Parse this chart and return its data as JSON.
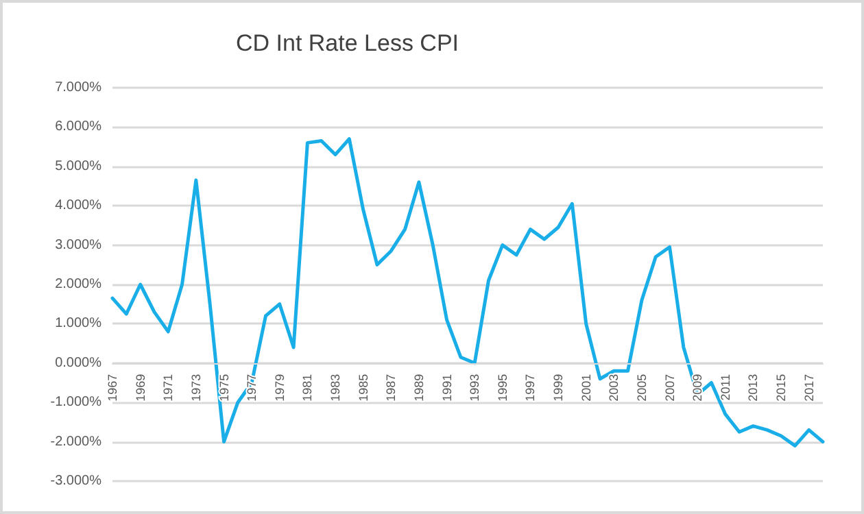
{
  "chart_data": {
    "type": "line",
    "title": "CD Int Rate Less CPI",
    "categories": [
      "1967",
      null,
      "1969",
      null,
      "1971",
      null,
      "1973",
      null,
      "1975",
      null,
      "1977",
      null,
      "1979",
      null,
      "1981",
      null,
      "1983",
      null,
      "1985",
      null,
      "1987",
      null,
      "1989",
      null,
      "1991",
      null,
      "1993",
      null,
      "1995",
      null,
      "1997",
      null,
      "1999",
      null,
      "2001",
      null,
      "2003",
      null,
      "2005",
      null,
      "2007",
      null,
      "2009",
      null,
      "2011",
      null,
      "2013",
      null,
      "2015",
      null,
      "2017",
      null
    ],
    "series": [
      {
        "color": "#1aaee8",
        "values": [
          1.65,
          1.25,
          2.0,
          1.3,
          0.8,
          2.0,
          4.65,
          1.5,
          -2.0,
          -1.0,
          -0.5,
          1.2,
          1.5,
          0.4,
          5.6,
          5.65,
          5.3,
          5.7,
          3.9,
          2.5,
          2.85,
          3.4,
          4.6,
          3.0,
          1.1,
          0.15,
          0.0,
          2.1,
          3.0,
          2.75,
          3.4,
          3.15,
          3.45,
          4.05,
          1.0,
          -0.4,
          -0.2,
          -0.2,
          1.6,
          2.7,
          2.95,
          0.4,
          -0.8,
          -0.5,
          -1.3,
          -1.75,
          -1.6,
          -1.7,
          -1.85,
          -2.1,
          -1.7,
          -2.0
        ]
      }
    ],
    "ylim": [
      -3,
      7
    ],
    "yticks": [
      {
        "value": -3,
        "label": "-3.000%"
      },
      {
        "value": -2,
        "label": "-2.000%"
      },
      {
        "value": -1,
        "label": "-1.000%"
      },
      {
        "value": 0,
        "label": "0.000%"
      },
      {
        "value": 1,
        "label": "1.000%"
      },
      {
        "value": 2,
        "label": "2.000%"
      },
      {
        "value": 3,
        "label": "3.000%"
      },
      {
        "value": 4,
        "label": "4.000%"
      },
      {
        "value": 5,
        "label": "5.000%"
      },
      {
        "value": 6,
        "label": "6.000%"
      },
      {
        "value": 7,
        "label": "7.000%"
      }
    ],
    "grid": "y",
    "marker": "none",
    "line_style": "solid"
  }
}
